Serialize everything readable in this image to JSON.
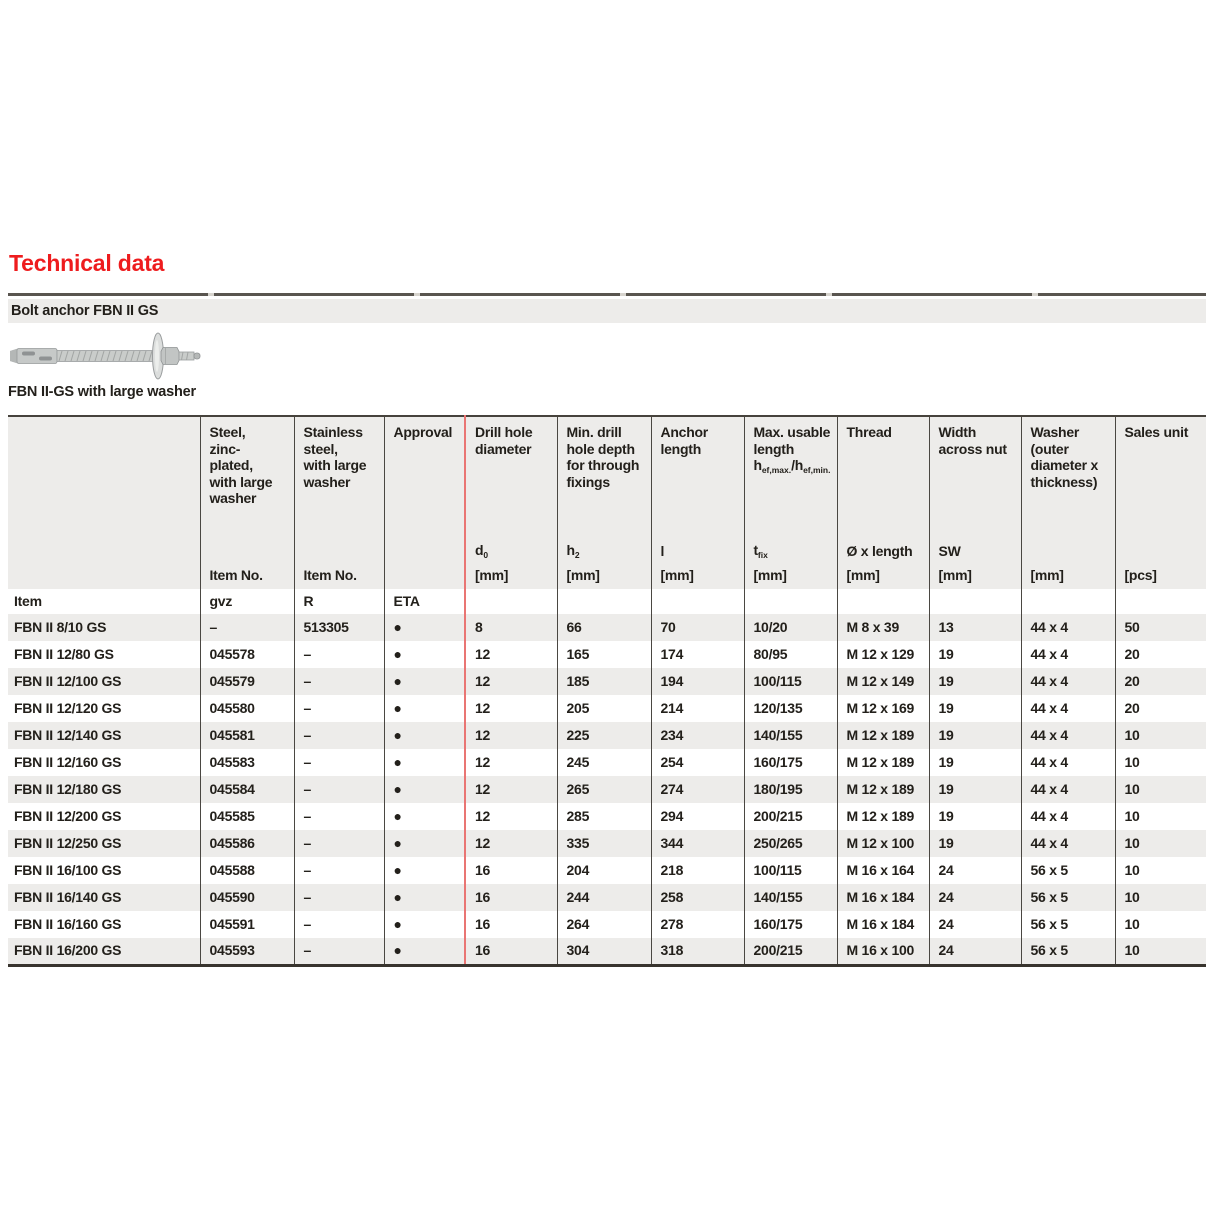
{
  "page": {
    "title": "Technical data",
    "section_title": "Bolt anchor FBN II GS",
    "image_caption": "FBN II-GS with large washer"
  },
  "colors": {
    "accent_red": "#ee1c1e",
    "red_column_rule": "#e97573",
    "band_gray": "#edecea",
    "row_alt_gray": "#edecea",
    "border_dark": "#4a4742"
  },
  "table": {
    "columns": [
      {
        "id": "item",
        "title": "",
        "unit_row": "",
        "bottom_label": "Item"
      },
      {
        "id": "steel-gvz",
        "title": "Steel,\nzinc-\nplated,\nwith large\nwasher",
        "unit_row": "Item No.",
        "bottom_label": "gvz"
      },
      {
        "id": "stainless",
        "title": "Stainless\nsteel,\nwith large\nwasher",
        "unit_row": "Item No.",
        "bottom_label": "R"
      },
      {
        "id": "approval",
        "title": "Approval",
        "unit_row": "",
        "bottom_label": "ETA"
      },
      {
        "id": "drill-hole-diameter",
        "title": "Drill hole\ndiameter",
        "symbol": {
          "base": "d",
          "sub": "0"
        },
        "unit_row": "[mm]",
        "bottom_label": ""
      },
      {
        "id": "min-drill-hole-depth",
        "title": "Min. drill\nhole depth\nfor through\nfixings",
        "symbol": {
          "base": "h",
          "sub": "2"
        },
        "unit_row": "[mm]",
        "bottom_label": ""
      },
      {
        "id": "anchor-length",
        "title": "Anchor\nlength",
        "symbol": {
          "base": "l",
          "sub": ""
        },
        "unit_row": "[mm]",
        "bottom_label": ""
      },
      {
        "id": "max-usable-length",
        "title": "Max. usable\nlength",
        "title_formula": [
          {
            "text": "h"
          },
          {
            "sub": "ef,max."
          },
          {
            "text": "/h"
          },
          {
            "sub": "ef,min."
          }
        ],
        "symbol": {
          "base": "t",
          "sub": "fix"
        },
        "unit_row": "[mm]",
        "bottom_label": ""
      },
      {
        "id": "thread",
        "title": "Thread",
        "symbol": {
          "base": "Ø x length",
          "sub": ""
        },
        "unit_row": "[mm]",
        "bottom_label": ""
      },
      {
        "id": "width-across-nut",
        "title": "Width\nacross nut",
        "symbol": {
          "base": "SW",
          "sub": ""
        },
        "unit_row": "[mm]",
        "bottom_label": ""
      },
      {
        "id": "washer",
        "title": "Washer\n(outer\ndiameter x\nthickness)",
        "unit_row": "[mm]",
        "bottom_label": ""
      },
      {
        "id": "sales-unit",
        "title": "Sales unit",
        "unit_row": "[pcs]",
        "bottom_label": ""
      }
    ],
    "rows": [
      [
        "FBN II 8/10 GS",
        "–",
        "513305",
        "●",
        "8",
        "66",
        "70",
        "10/20",
        "M 8 x 39",
        "13",
        "44 x 4",
        "50"
      ],
      [
        "FBN II 12/80 GS",
        "045578",
        "–",
        "●",
        "12",
        "165",
        "174",
        "80/95",
        "M 12 x 129",
        "19",
        "44 x 4",
        "20"
      ],
      [
        "FBN II 12/100 GS",
        "045579",
        "–",
        "●",
        "12",
        "185",
        "194",
        "100/115",
        "M 12 x 149",
        "19",
        "44 x 4",
        "20"
      ],
      [
        "FBN II 12/120 GS",
        "045580",
        "–",
        "●",
        "12",
        "205",
        "214",
        "120/135",
        "M 12 x 169",
        "19",
        "44 x 4",
        "20"
      ],
      [
        "FBN II 12/140 GS",
        "045581",
        "–",
        "●",
        "12",
        "225",
        "234",
        "140/155",
        "M 12 x 189",
        "19",
        "44 x 4",
        "10"
      ],
      [
        "FBN II 12/160 GS",
        "045583",
        "–",
        "●",
        "12",
        "245",
        "254",
        "160/175",
        "M 12 x 189",
        "19",
        "44 x 4",
        "10"
      ],
      [
        "FBN II 12/180 GS",
        "045584",
        "–",
        "●",
        "12",
        "265",
        "274",
        "180/195",
        "M 12 x 189",
        "19",
        "44 x 4",
        "10"
      ],
      [
        "FBN II 12/200 GS",
        "045585",
        "–",
        "●",
        "12",
        "285",
        "294",
        "200/215",
        "M 12 x 189",
        "19",
        "44 x 4",
        "10"
      ],
      [
        "FBN II 12/250 GS",
        "045586",
        "–",
        "●",
        "12",
        "335",
        "344",
        "250/265",
        "M 12 x 100",
        "19",
        "44 x 4",
        "10"
      ],
      [
        "FBN II 16/100 GS",
        "045588",
        "–",
        "●",
        "16",
        "204",
        "218",
        "100/115",
        "M 16 x 164",
        "24",
        "56 x 5",
        "10"
      ],
      [
        "FBN II 16/140 GS",
        "045590",
        "–",
        "●",
        "16",
        "244",
        "258",
        "140/155",
        "M 16 x 184",
        "24",
        "56 x 5",
        "10"
      ],
      [
        "FBN II 16/160 GS",
        "045591",
        "–",
        "●",
        "16",
        "264",
        "278",
        "160/175",
        "M 16 x 184",
        "24",
        "56 x 5",
        "10"
      ],
      [
        "FBN II 16/200 GS",
        "045593",
        "–",
        "●",
        "16",
        "304",
        "318",
        "200/215",
        "M 16 x 100",
        "24",
        "56 x 5",
        "10"
      ]
    ]
  }
}
